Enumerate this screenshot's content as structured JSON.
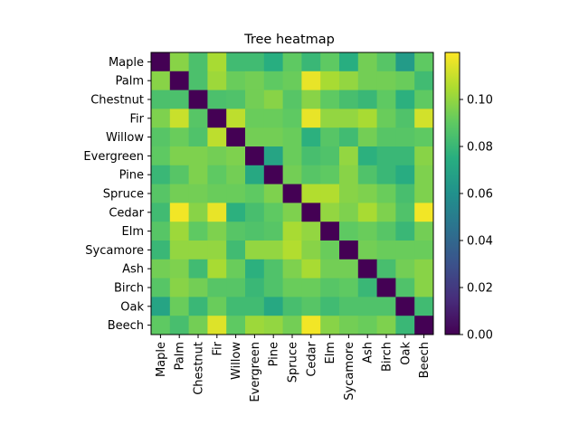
{
  "chart_data": {
    "type": "heatmap",
    "title": "Tree heatmap",
    "xlabel": "",
    "ylabel": "",
    "row_labels": [
      "Maple",
      "Palm",
      "Chestnut",
      "Fir",
      "Willow",
      "Evergreen",
      "Pine",
      "Spruce",
      "Cedar",
      "Elm",
      "Sycamore",
      "Ash",
      "Birch",
      "Oak",
      "Beech"
    ],
    "col_labels": [
      "Maple",
      "Palm",
      "Chestnut",
      "Fir",
      "Willow",
      "Evergreen",
      "Pine",
      "Spruce",
      "Cedar",
      "Elm",
      "Sycamore",
      "Ash",
      "Birch",
      "Oak",
      "Beech"
    ],
    "values": [
      [
        0.0,
        0.098,
        0.085,
        0.104,
        0.082,
        0.082,
        0.075,
        0.09,
        0.08,
        0.09,
        0.075,
        0.094,
        0.088,
        0.065,
        0.09
      ],
      [
        0.098,
        0.0,
        0.085,
        0.102,
        0.092,
        0.094,
        0.09,
        0.092,
        0.116,
        0.104,
        0.1,
        0.094,
        0.094,
        0.092,
        0.082
      ],
      [
        0.085,
        0.085,
        0.0,
        0.085,
        0.086,
        0.094,
        0.098,
        0.088,
        0.098,
        0.09,
        0.084,
        0.08,
        0.09,
        0.076,
        0.09
      ],
      [
        0.096,
        0.11,
        0.088,
        0.0,
        0.108,
        0.092,
        0.092,
        0.09,
        0.116,
        0.1,
        0.1,
        0.104,
        0.092,
        0.086,
        0.112
      ],
      [
        0.088,
        0.092,
        0.086,
        0.108,
        0.0,
        0.094,
        0.094,
        0.092,
        0.076,
        0.088,
        0.082,
        0.094,
        0.088,
        0.088,
        0.09
      ],
      [
        0.09,
        0.096,
        0.096,
        0.094,
        0.096,
        0.0,
        0.07,
        0.092,
        0.084,
        0.086,
        0.1,
        0.076,
        0.08,
        0.08,
        0.098
      ],
      [
        0.08,
        0.088,
        0.096,
        0.09,
        0.094,
        0.072,
        0.0,
        0.094,
        0.088,
        0.09,
        0.098,
        0.086,
        0.08,
        0.074,
        0.096
      ],
      [
        0.088,
        0.094,
        0.094,
        0.092,
        0.092,
        0.09,
        0.096,
        0.0,
        0.106,
        0.106,
        0.098,
        0.096,
        0.092,
        0.084,
        0.096
      ],
      [
        0.082,
        0.118,
        0.098,
        0.116,
        0.076,
        0.084,
        0.09,
        0.096,
        0.0,
        0.1,
        0.096,
        0.104,
        0.096,
        0.086,
        0.118
      ],
      [
        0.088,
        0.102,
        0.09,
        0.096,
        0.088,
        0.086,
        0.088,
        0.104,
        0.1,
        0.0,
        0.09,
        0.092,
        0.088,
        0.08,
        0.094
      ],
      [
        0.08,
        0.1,
        0.1,
        0.1,
        0.082,
        0.1,
        0.1,
        0.106,
        0.098,
        0.092,
        0.0,
        0.094,
        0.092,
        0.092,
        0.092
      ],
      [
        0.094,
        0.096,
        0.082,
        0.104,
        0.092,
        0.076,
        0.086,
        0.096,
        0.104,
        0.094,
        0.094,
        0.0,
        0.084,
        0.094,
        0.098
      ],
      [
        0.088,
        0.098,
        0.094,
        0.088,
        0.088,
        0.08,
        0.086,
        0.092,
        0.092,
        0.088,
        0.09,
        0.08,
        0.0,
        0.086,
        0.098
      ],
      [
        0.07,
        0.092,
        0.08,
        0.092,
        0.082,
        0.082,
        0.072,
        0.084,
        0.088,
        0.082,
        0.086,
        0.086,
        0.086,
        0.0,
        0.082
      ],
      [
        0.09,
        0.084,
        0.094,
        0.114,
        0.09,
        0.102,
        0.1,
        0.094,
        0.118,
        0.098,
        0.094,
        0.092,
        0.096,
        0.08,
        0.0
      ]
    ],
    "vmin": 0.0,
    "vmax": 0.12,
    "colormap": "viridis",
    "colorbar_ticks": [
      "0.00",
      "0.02",
      "0.04",
      "0.06",
      "0.08",
      "0.10"
    ],
    "grid": false,
    "legend": "colorbar-right"
  }
}
